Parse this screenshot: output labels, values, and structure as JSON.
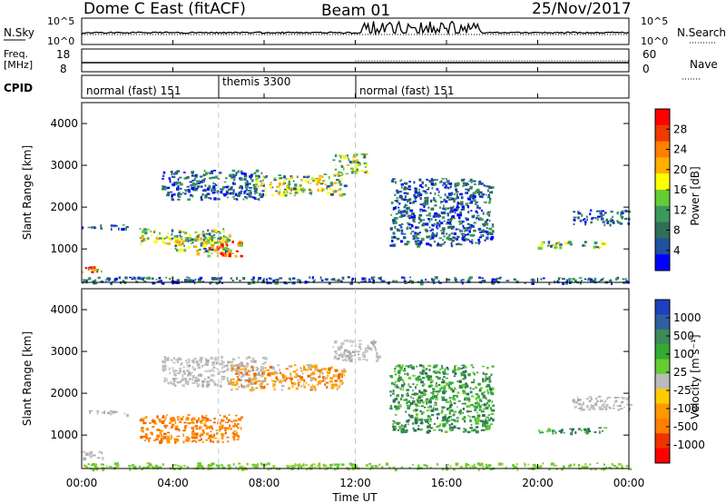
{
  "header": {
    "station": "Dome C East (fitACF)",
    "beam": "Beam 01",
    "date": "25/Nov/2017"
  },
  "top_panels": {
    "nsky_label": "N.Sky",
    "nsky_ticks": [
      "10^5",
      "10^0"
    ],
    "nsearch_label": "N.Search",
    "nsearch_ticks": [
      "10^5",
      "10^0"
    ],
    "freq_label_line1": "Freq.",
    "freq_label_line2": "[MHz]",
    "freq_ticks": [
      "18",
      "8"
    ],
    "nave_label": "Nave",
    "nave_ticks": [
      "60",
      "0"
    ],
    "cpid_label": "CPID"
  },
  "cpid_segments": [
    {
      "label": "normal (fast) 151",
      "start_hour": 0
    },
    {
      "label": "themis 3300",
      "start_hour": 6
    },
    {
      "label": "normal (fast) 151",
      "start_hour": 12
    }
  ],
  "colorbars": {
    "power": {
      "label": "Power [dB]",
      "ticks": [
        "28",
        "24",
        "20",
        "16",
        "12",
        "8",
        "4"
      ],
      "colors": [
        "#ff0000",
        "#ee3a00",
        "#ff7f00",
        "#ffb000",
        "#ffff00",
        "#66cc33",
        "#3a9a5c",
        "#2f6f5a",
        "#2050a0",
        "#0000ff"
      ]
    },
    "velocity": {
      "label": "Velocity [m s⁻¹]",
      "ticks": [
        "1000",
        "500",
        "100",
        "25",
        "-25",
        "-100",
        "-500",
        "-1000"
      ],
      "colors": [
        "#1f3fbf",
        "#2f5fa0",
        "#3a8a5a",
        "#33aa33",
        "#66cc33",
        "#bbbbbb",
        "#ffcc00",
        "#ff9900",
        "#ff7f00",
        "#ee3300",
        "#ff0000"
      ]
    }
  },
  "x_axis": {
    "label": "Time UT",
    "ticks": [
      "00:00",
      "04:00",
      "08:00",
      "12:00",
      "16:00",
      "20:00",
      "00:00"
    ]
  },
  "chart_data": [
    {
      "type": "heatmap",
      "title": "Power",
      "xlabel": "Time UT",
      "ylabel": "Slant Range [km]",
      "ylim": [
        200,
        4500
      ],
      "xlim_hours": [
        0,
        24
      ],
      "yticks": [
        "1000",
        "2000",
        "3000",
        "4000"
      ],
      "colorbar": "Power [dB]",
      "echo_regions": [
        {
          "t0": 0.0,
          "t1": 0.9,
          "r0": 450,
          "r1": 650,
          "level": "high"
        },
        {
          "t0": 0.0,
          "t1": 2.0,
          "r0": 1500,
          "r1": 1600,
          "level": "low"
        },
        {
          "t0": 2.5,
          "t1": 6.5,
          "r0": 1150,
          "r1": 1500,
          "level": "mid"
        },
        {
          "t0": 4.0,
          "t1": 6.5,
          "r0": 900,
          "r1": 1300,
          "level": "mid"
        },
        {
          "t0": 5.5,
          "t1": 7.0,
          "r0": 850,
          "r1": 1200,
          "level": "high"
        },
        {
          "t0": 3.5,
          "t1": 8.0,
          "r0": 2200,
          "r1": 2900,
          "level": "low"
        },
        {
          "t0": 7.5,
          "t1": 11.5,
          "r0": 2300,
          "r1": 2800,
          "level": "mid"
        },
        {
          "t0": 11.0,
          "t1": 12.5,
          "r0": 2800,
          "r1": 3300,
          "level": "mid"
        },
        {
          "t0": 13.5,
          "t1": 18.0,
          "r0": 1100,
          "r1": 2700,
          "level": "low"
        },
        {
          "t0": 20.0,
          "t1": 23.0,
          "r0": 1050,
          "r1": 1200,
          "level": "mid"
        },
        {
          "t0": 21.5,
          "t1": 24.0,
          "r0": 1600,
          "r1": 1950,
          "level": "low"
        },
        {
          "t0": 0.0,
          "t1": 24.0,
          "r0": 200,
          "r1": 350,
          "level": "low"
        }
      ]
    },
    {
      "type": "heatmap",
      "title": "Velocity",
      "xlabel": "Time UT",
      "ylabel": "Slant Range [km]",
      "ylim": [
        200,
        4500
      ],
      "xlim_hours": [
        0,
        24
      ],
      "yticks": [
        "1000",
        "2000",
        "3000",
        "4000"
      ],
      "colorbar": "Velocity [m s⁻¹]",
      "echo_regions": [
        {
          "t0": 0.0,
          "t1": 0.9,
          "r0": 450,
          "r1": 650,
          "level": "ground"
        },
        {
          "t0": 0.0,
          "t1": 2.0,
          "r0": 1500,
          "r1": 1600,
          "level": "ground"
        },
        {
          "t0": 2.5,
          "t1": 7.0,
          "r0": 850,
          "r1": 1500,
          "level": "away-500"
        },
        {
          "t0": 3.5,
          "t1": 8.0,
          "r0": 2200,
          "r1": 2900,
          "level": "ground"
        },
        {
          "t0": 6.5,
          "t1": 11.5,
          "r0": 2100,
          "r1": 2700,
          "level": "away-100"
        },
        {
          "t0": 11.0,
          "t1": 13.0,
          "r0": 2800,
          "r1": 3300,
          "level": "ground"
        },
        {
          "t0": 13.5,
          "t1": 18.0,
          "r0": 1100,
          "r1": 2700,
          "level": "toward-100"
        },
        {
          "t0": 20.0,
          "t1": 23.0,
          "r0": 1050,
          "r1": 1200,
          "level": "toward-100"
        },
        {
          "t0": 21.5,
          "t1": 24.0,
          "r0": 1600,
          "r1": 1950,
          "level": "ground"
        },
        {
          "t0": 0.0,
          "t1": 24.0,
          "r0": 200,
          "r1": 350,
          "level": "toward-25"
        }
      ]
    }
  ]
}
